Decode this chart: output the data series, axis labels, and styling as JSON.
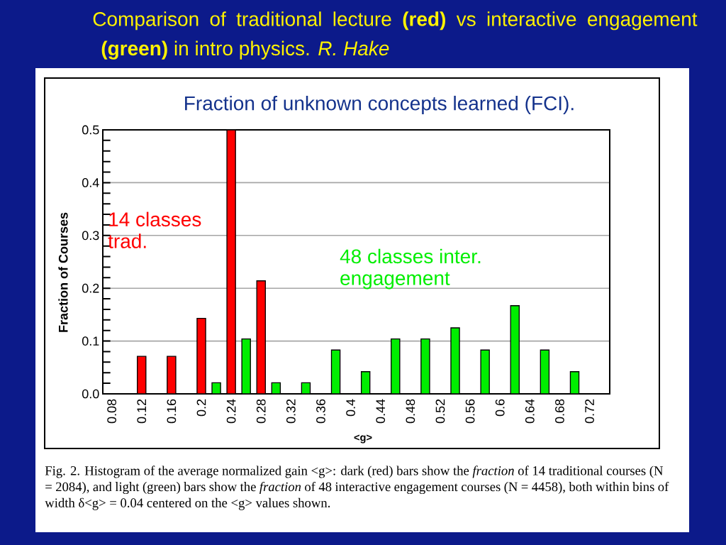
{
  "chart_data": {
    "type": "bar",
    "title": "Comparison of traditional lecture **(red)** vs interactive engagement **(green)** in intro physics. *R. Hake*",
    "subtitle": "Fraction of unknown concepts learned (FCI).",
    "xlabel": "<g>",
    "ylabel": "Fraction of Courses",
    "series": [
      {
        "name": "14 classes trad.",
        "color": "#ff0000",
        "x": [
          0.12,
          0.16,
          0.2,
          0.24,
          0.28
        ],
        "values": [
          0.071,
          0.071,
          0.143,
          0.5,
          0.214
        ]
      },
      {
        "name": "48 classes inter. engagement",
        "color": "#00ee00",
        "x": [
          0.22,
          0.26,
          0.3,
          0.34,
          0.38,
          0.42,
          0.46,
          0.5,
          0.54,
          0.58,
          0.62,
          0.66,
          0.7
        ],
        "values": [
          0.021,
          0.104,
          0.021,
          0.021,
          0.083,
          0.042,
          0.104,
          0.104,
          0.125,
          0.083,
          0.167,
          0.083,
          0.042
        ]
      }
    ],
    "xlim": [
      0.068,
      0.747
    ],
    "xticks": [
      0.08,
      0.12,
      0.16,
      0.2,
      0.24,
      0.28,
      0.32,
      0.36,
      0.4,
      0.44,
      0.48,
      0.52,
      0.56,
      0.6,
      0.64,
      0.68,
      0.72
    ],
    "ylim": [
      0,
      0.5
    ],
    "yticks": [
      {
        "value": 0,
        "label": "0.0"
      },
      0.1,
      0.2,
      0.3,
      0.4,
      0.5
    ],
    "grid": "y",
    "annotations": [
      "Fig. 2.  Histogram of the average normalized gain <g>:  dark (red) bars show the *fraction* of 14 traditional courses (N = 2084), and light (green) bars show the *fraction* of 48 interactive engagement courses (N = 4458), both within bins of width δ<g> = 0.04 centered on the <g> values shown."
    ]
  }
}
